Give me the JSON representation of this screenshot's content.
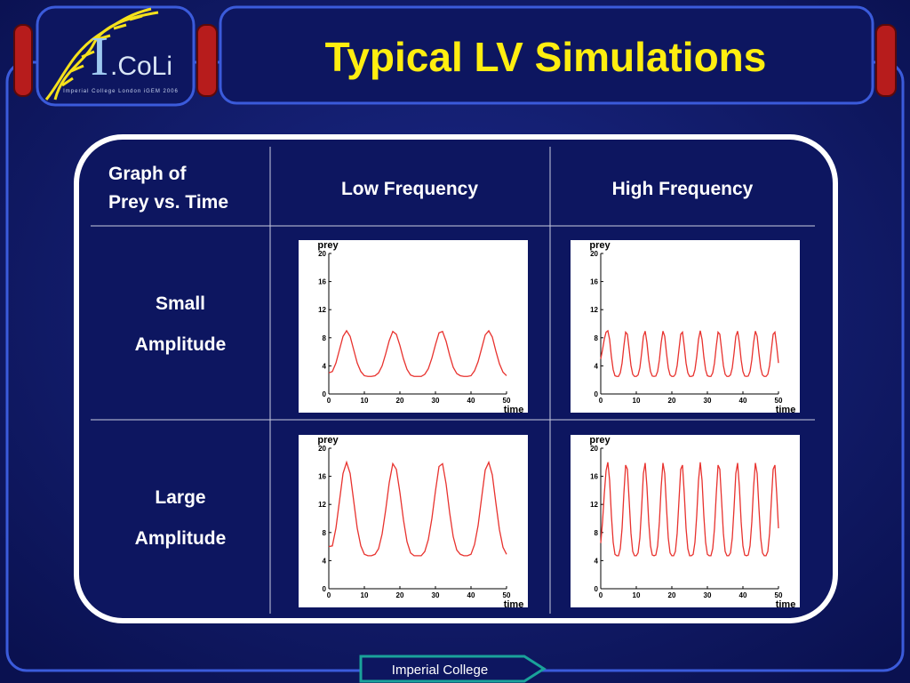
{
  "title": "Typical LV Simulations",
  "logo": {
    "mark": "I",
    "text": ".CoLi",
    "caption": "Imperial College London iGEM 2006"
  },
  "table": {
    "corner": [
      "Graph of",
      "Prey vs. Time"
    ],
    "columns": [
      "Low Frequency",
      "High Frequency"
    ],
    "rows": [
      [
        "Small",
        "Amplitude"
      ],
      [
        "Large",
        "Amplitude"
      ]
    ]
  },
  "footer": "Imperial College",
  "chart_data": [
    {
      "type": "line",
      "x_label": "time",
      "y_label": "prey",
      "xlim": [
        0,
        50
      ],
      "ylim": [
        0,
        20
      ],
      "xticks": [
        0,
        10,
        20,
        30,
        40,
        50
      ],
      "yticks": [
        0,
        4,
        8,
        12,
        16,
        20
      ],
      "x": [
        0,
        1,
        2,
        3,
        4,
        5,
        6,
        7,
        8,
        9,
        10,
        11,
        12,
        13,
        14,
        15,
        16,
        17,
        18,
        19,
        20,
        21,
        22,
        23,
        24,
        25,
        26,
        27,
        28,
        29,
        30,
        31,
        32,
        33,
        34,
        35,
        36,
        37,
        38,
        39,
        40,
        41,
        42,
        43,
        44,
        45,
        46,
        47,
        48,
        49,
        50
      ],
      "series": [
        {
          "color": "#e8322e",
          "values": [
            3.0,
            3.2,
            4.4,
            6.3,
            8.2,
            9.0,
            8.2,
            6.3,
            4.4,
            3.2,
            2.6,
            2.5,
            2.5,
            2.6,
            3.0,
            4.0,
            5.7,
            7.6,
            8.9,
            8.5,
            6.9,
            5.0,
            3.5,
            2.7,
            2.5,
            2.5,
            2.5,
            2.8,
            3.6,
            5.1,
            7.0,
            8.7,
            8.9,
            7.5,
            5.5,
            3.8,
            2.9,
            2.6,
            2.5,
            2.5,
            2.6,
            3.3,
            4.6,
            6.5,
            8.4,
            9.0,
            8.1,
            6.1,
            4.3,
            3.1,
            2.6
          ]
        }
      ]
    },
    {
      "type": "line",
      "x_label": "time",
      "y_label": "prey",
      "xlim": [
        0,
        50
      ],
      "ylim": [
        0,
        20
      ],
      "xticks": [
        0,
        10,
        20,
        30,
        40,
        50
      ],
      "yticks": [
        0,
        4,
        8,
        12,
        16,
        20
      ],
      "x": [
        0,
        0.5,
        1,
        1.5,
        2,
        2.5,
        3,
        3.5,
        4,
        4.5,
        5,
        5.5,
        6,
        6.5,
        7,
        7.5,
        8,
        8.5,
        9,
        9.5,
        10,
        10.5,
        11,
        11.5,
        12,
        12.5,
        13,
        13.5,
        14,
        14.5,
        15,
        15.5,
        16,
        16.5,
        17,
        17.5,
        18,
        18.5,
        19,
        19.5,
        20,
        20.5,
        21,
        21.5,
        22,
        22.5,
        23,
        23.5,
        24,
        24.5,
        25,
        25.5,
        26,
        26.5,
        27,
        27.5,
        28,
        28.5,
        29,
        29.5,
        30,
        30.5,
        31,
        31.5,
        32,
        32.5,
        33,
        33.5,
        34,
        34.5,
        35,
        35.5,
        36,
        36.5,
        37,
        37.5,
        38,
        38.5,
        39,
        39.5,
        40,
        40.5,
        41,
        41.5,
        42,
        42.5,
        43,
        43.5,
        44,
        44.5,
        45,
        45.5,
        46,
        46.5,
        47,
        47.5,
        48,
        48.5,
        49,
        49.5,
        50
      ],
      "series": [
        {
          "color": "#e8322e",
          "values": [
            5.0,
            6.3,
            7.8,
            8.8,
            9.0,
            7.75,
            5.3,
            3.45,
            2.6,
            2.5,
            2.5,
            3.0,
            4.4,
            6.8,
            8.8,
            8.5,
            6.3,
            4.05,
            2.8,
            2.5,
            2.5,
            2.7,
            3.7,
            5.8,
            8.2,
            8.95,
            7.3,
            4.85,
            3.2,
            2.55,
            2.5,
            2.55,
            3.2,
            4.85,
            7.3,
            8.95,
            8.2,
            5.8,
            3.7,
            2.7,
            2.5,
            2.5,
            2.8,
            4.05,
            6.3,
            8.5,
            8.8,
            6.8,
            4.4,
            3.0,
            2.5,
            2.5,
            2.6,
            3.45,
            5.3,
            7.75,
            9.0,
            7.75,
            5.3,
            3.45,
            2.6,
            2.5,
            2.5,
            3.0,
            4.4,
            6.8,
            8.8,
            8.5,
            6.3,
            4.05,
            2.8,
            2.5,
            2.5,
            2.7,
            3.7,
            5.8,
            8.2,
            8.95,
            7.3,
            4.85,
            3.2,
            2.55,
            2.5,
            2.55,
            3.2,
            4.85,
            7.3,
            8.95,
            8.2,
            5.8,
            3.7,
            2.7,
            2.5,
            2.5,
            2.8,
            4.05,
            6.3,
            8.5,
            8.8,
            6.8,
            4.4
          ]
        }
      ]
    },
    {
      "type": "line",
      "x_label": "time",
      "y_label": "prey",
      "xlim": [
        0,
        50
      ],
      "ylim": [
        0,
        20
      ],
      "xticks": [
        0,
        10,
        20,
        30,
        40,
        50
      ],
      "yticks": [
        0,
        4,
        8,
        12,
        16,
        20
      ],
      "x": [
        0,
        1,
        2,
        3,
        4,
        5,
        6,
        7,
        8,
        9,
        10,
        11,
        12,
        13,
        14,
        15,
        16,
        17,
        18,
        19,
        20,
        21,
        22,
        23,
        24,
        25,
        26,
        27,
        28,
        29,
        30,
        31,
        32,
        33,
        34,
        35,
        36,
        37,
        38,
        39,
        40,
        41,
        42,
        43,
        44,
        45,
        46,
        47,
        48,
        49,
        50
      ],
      "series": [
        {
          "color": "#e8322e",
          "values": [
            6.0,
            6.1,
            8.6,
            12.5,
            16.4,
            18.0,
            16.4,
            12.5,
            8.6,
            6.1,
            4.9,
            4.7,
            4.7,
            4.9,
            5.7,
            7.8,
            11.2,
            15.1,
            17.8,
            17.0,
            13.7,
            9.8,
            6.7,
            5.1,
            4.7,
            4.7,
            4.7,
            5.3,
            7.0,
            10.0,
            13.9,
            17.4,
            17.8,
            14.9,
            10.8,
            7.4,
            5.5,
            4.9,
            4.7,
            4.7,
            4.9,
            6.3,
            9.0,
            13.0,
            16.9,
            18.0,
            16.2,
            12.2,
            8.4,
            5.9,
            4.9
          ]
        }
      ]
    },
    {
      "type": "line",
      "x_label": "time",
      "y_label": "prey",
      "xlim": [
        0,
        50
      ],
      "ylim": [
        0,
        20
      ],
      "xticks": [
        0,
        10,
        20,
        30,
        40,
        50
      ],
      "yticks": [
        0,
        4,
        8,
        12,
        16,
        20
      ],
      "x": [
        0,
        0.5,
        1,
        1.5,
        2,
        2.5,
        3,
        3.5,
        4,
        4.5,
        5,
        5.5,
        6,
        6.5,
        7,
        7.5,
        8,
        8.5,
        9,
        9.5,
        10,
        10.5,
        11,
        11.5,
        12,
        12.5,
        13,
        13.5,
        14,
        14.5,
        15,
        15.5,
        16,
        16.5,
        17,
        17.5,
        18,
        18.5,
        19,
        19.5,
        20,
        20.5,
        21,
        21.5,
        22,
        22.5,
        23,
        23.5,
        24,
        24.5,
        25,
        25.5,
        26,
        26.5,
        27,
        27.5,
        28,
        28.5,
        29,
        29.5,
        30,
        30.5,
        31,
        31.5,
        32,
        32.5,
        33,
        33.5,
        34,
        34.5,
        35,
        35.5,
        36,
        36.5,
        37,
        37.5,
        38,
        38.5,
        39,
        39.5,
        40,
        40.5,
        41,
        41.5,
        42,
        42.5,
        43,
        43.5,
        44,
        44.5,
        45,
        45.5,
        46,
        46.5,
        47,
        47.5,
        48,
        48.5,
        49,
        49.5,
        50
      ],
      "series": [
        {
          "color": "#e8322e",
          "values": [
            6.5,
            9.5,
            13.5,
            16.8,
            18.0,
            15.4,
            10.4,
            6.6,
            4.9,
            4.7,
            4.7,
            5.7,
            8.6,
            13.5,
            17.6,
            17.0,
            12.5,
            7.9,
            5.3,
            4.7,
            4.7,
            5.1,
            7.2,
            11.5,
            16.4,
            17.9,
            14.5,
            9.5,
            6.1,
            4.8,
            4.7,
            4.8,
            6.1,
            9.5,
            14.5,
            17.9,
            16.4,
            11.5,
            7.2,
            5.1,
            4.7,
            4.7,
            5.3,
            7.9,
            12.5,
            17.0,
            17.6,
            13.5,
            8.6,
            5.7,
            4.7,
            4.7,
            4.9,
            6.6,
            10.4,
            15.4,
            18.0,
            15.4,
            10.4,
            6.6,
            4.9,
            4.7,
            4.7,
            5.7,
            8.6,
            13.5,
            17.6,
            17.0,
            12.5,
            7.9,
            5.3,
            4.7,
            4.7,
            5.1,
            7.2,
            11.5,
            16.4,
            17.9,
            14.5,
            9.5,
            6.1,
            4.8,
            4.7,
            4.8,
            6.1,
            9.5,
            14.5,
            17.9,
            16.4,
            11.5,
            7.2,
            5.1,
            4.7,
            4.7,
            5.3,
            7.9,
            12.5,
            17.0,
            17.6,
            13.5,
            8.6
          ]
        }
      ]
    }
  ]
}
